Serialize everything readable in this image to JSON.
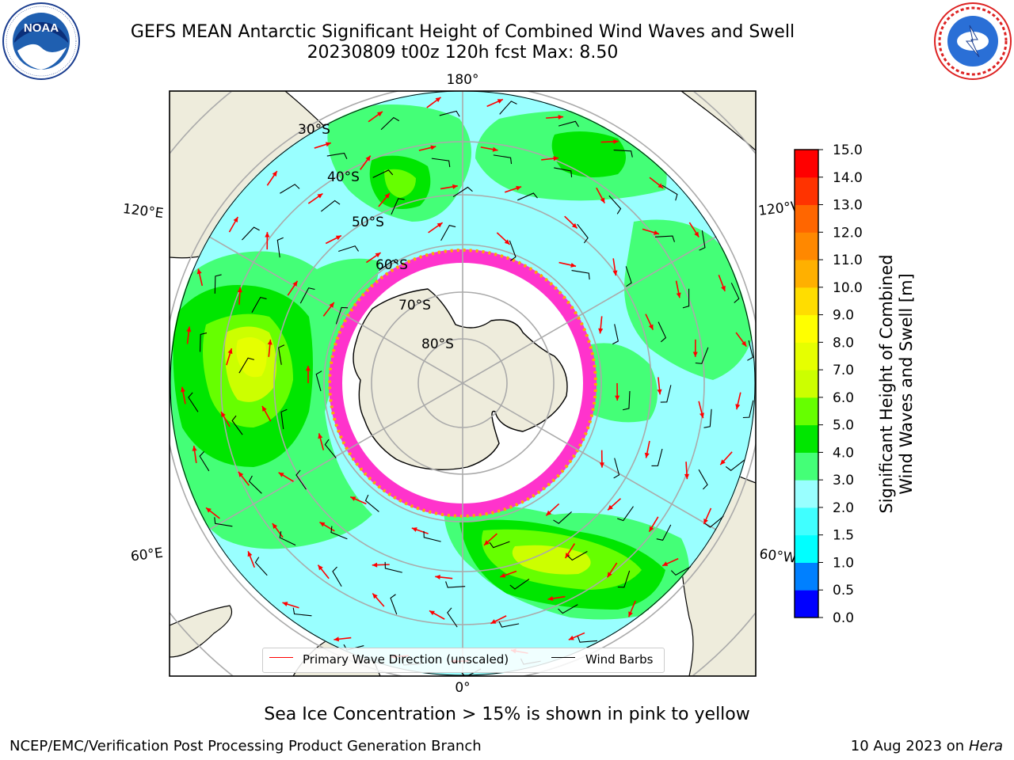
{
  "title": {
    "line1": "GEFS MEAN Antarctic Significant Height of Combined Wind Waves and Swell",
    "line2": "20230809 t00z 120h fcst   Max: 8.50"
  },
  "logos": {
    "left": {
      "text": "NOAA",
      "ring_text": "NATIONAL OCEANIC AND ATMOSPHERIC ADMINISTRATION · U.S. DEPARTMENT OF COMMERCE"
    },
    "right": {
      "ring_text": "NATIONAL WEATHER SERVICE"
    }
  },
  "map": {
    "projection": "south polar stereographic",
    "longitude_labels": {
      "top": "180°",
      "bottom": "0°",
      "left_upper": "120°E",
      "left_lower": "60°E",
      "right_upper": "120°W",
      "right_lower": "60°W"
    },
    "latitude_labels": [
      "30°S",
      "40°S",
      "50°S",
      "60°S",
      "70°S",
      "80°S"
    ],
    "ocean_color": "#ffffff",
    "land_color": "#eeecdc",
    "sea_ice_colors": [
      "#ff33cc",
      "#ffaa00",
      "#ffee00"
    ]
  },
  "legend": {
    "wave_label": "Primary Wave Direction (unscaled)",
    "wave_color": "#ff0000",
    "wind_label": "Wind Barbs",
    "wind_color": "#000000"
  },
  "colorbar": {
    "label_line1": "Significant Height of Combined",
    "label_line2": "Wind Waves and Swell [m]",
    "ticks": [
      "0.0",
      "0.5",
      "1.0",
      "1.5",
      "2.0",
      "3.0",
      "4.0",
      "5.0",
      "6.0",
      "7.0",
      "8.0",
      "9.0",
      "10.0",
      "11.0",
      "12.0",
      "13.0",
      "14.0",
      "15.0"
    ],
    "bins": [
      {
        "min": 0.0,
        "max": 0.5,
        "color": "#0000ff"
      },
      {
        "min": 0.5,
        "max": 1.0,
        "color": "#0080ff"
      },
      {
        "min": 1.0,
        "max": 1.5,
        "color": "#00ffff"
      },
      {
        "min": 1.5,
        "max": 2.0,
        "color": "#40ffff"
      },
      {
        "min": 2.0,
        "max": 3.0,
        "color": "#99ffff"
      },
      {
        "min": 3.0,
        "max": 4.0,
        "color": "#44ff77"
      },
      {
        "min": 4.0,
        "max": 5.0,
        "color": "#00e600"
      },
      {
        "min": 5.0,
        "max": 6.0,
        "color": "#66ff00"
      },
      {
        "min": 6.0,
        "max": 7.0,
        "color": "#ccff00"
      },
      {
        "min": 7.0,
        "max": 8.0,
        "color": "#e6ff00"
      },
      {
        "min": 8.0,
        "max": 9.0,
        "color": "#ffff00"
      },
      {
        "min": 9.0,
        "max": 10.0,
        "color": "#ffdd00"
      },
      {
        "min": 10.0,
        "max": 11.0,
        "color": "#ffb000"
      },
      {
        "min": 11.0,
        "max": 12.0,
        "color": "#ff8800"
      },
      {
        "min": 12.0,
        "max": 13.0,
        "color": "#ff6600"
      },
      {
        "min": 13.0,
        "max": 14.0,
        "color": "#ff3300"
      },
      {
        "min": 14.0,
        "max": 15.0,
        "color": "#ff0000"
      }
    ]
  },
  "caption": "Sea Ice Concentration > 15% is shown in pink to yellow",
  "footer": {
    "left": "NCEP/EMC/Verification Post Processing Product Generation Branch",
    "right_date": "10 Aug 2023 on",
    "right_machine": "Hera"
  }
}
